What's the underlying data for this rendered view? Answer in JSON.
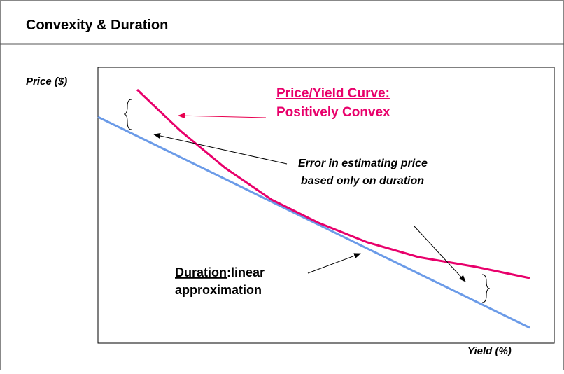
{
  "header": {
    "title": "Convexity & Duration"
  },
  "axes": {
    "y_label": "Price ($)",
    "x_label": "Yield (%)"
  },
  "annotations": {
    "curve": {
      "line1": "Price/Yield Curve:",
      "line2": "Positively Convex"
    },
    "error": {
      "line1": "Error in estimating price",
      "line2": "based only on duration"
    },
    "duration": {
      "term": "Duration",
      "rest": ":linear",
      "line2": "approximation"
    }
  }
}
